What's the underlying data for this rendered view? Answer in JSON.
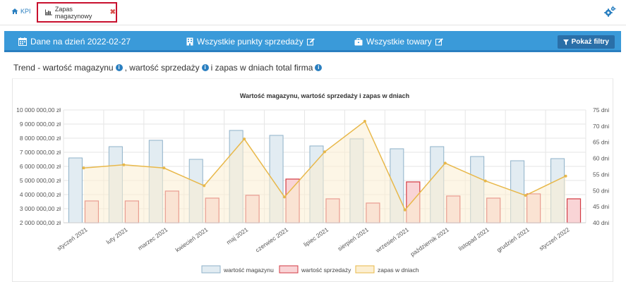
{
  "tabs": {
    "kpi_label": "KPI",
    "active_label": "Zapas magazynowy",
    "close_symbol": "✖"
  },
  "filters": {
    "date_label": "Dane na dzień 2022-02-27",
    "points_label": "Wszystkie punkty sprzedaży",
    "goods_label": "Wszystkie towary",
    "show_filters_label": "Pokaż filtry"
  },
  "panel": {
    "title_part1": "Trend - wartość magazynu",
    "title_part2": ", wartość sprzedaży",
    "title_part3": " i zapas w dniach total firma",
    "info_symbol": "i"
  },
  "icons": {
    "home": "home-icon",
    "chart": "bar-chart-icon",
    "settings": "gears-icon",
    "calendar": "calendar-icon",
    "building": "building-icon",
    "briefcase": "briefcase-icon",
    "edit": "edit-icon",
    "filter": "filter-icon",
    "info": "info-icon"
  },
  "colors": {
    "filter_bar": "#3a9ad9",
    "accent": "#2a7fc0",
    "active_tab_border": "#c8102e",
    "stock_fill": "#e2ecf2",
    "stock_stroke": "#8fb2c9",
    "sales_fill": "#f9d4d6",
    "sales_stroke": "#d33a43",
    "days_line": "#e8b84a",
    "days_area": "#fcefd2"
  },
  "chart_data": {
    "type": "bar",
    "title": "Wartość magazynu, wartość sprzedaży i zapas w dniach",
    "categories": [
      "styczeń 2021",
      "luty 2021",
      "marzec 2021",
      "kwiecień 2021",
      "maj 2021",
      "czerwiec 2021",
      "lipiec 2021",
      "sierpień 2021",
      "wrzesień 2021",
      "październik 2021",
      "listopad 2021",
      "grudzień 2021",
      "styczeń 2022"
    ],
    "series": [
      {
        "name": "wartość magazynu",
        "type": "bar",
        "axis": "left",
        "values": [
          6600000,
          7400000,
          7850000,
          6500000,
          8550000,
          8200000,
          7450000,
          7950000,
          7250000,
          7400000,
          6700000,
          6400000,
          6550000
        ]
      },
      {
        "name": "wartość sprzedaży",
        "type": "bar",
        "axis": "left",
        "values": [
          3550000,
          3550000,
          4250000,
          3750000,
          3950000,
          5100000,
          3700000,
          3400000,
          4900000,
          3900000,
          3750000,
          4050000,
          3700000
        ]
      },
      {
        "name": "zapas w dniach",
        "type": "area",
        "axis": "right",
        "values": [
          57,
          58,
          57,
          51.5,
          66,
          48,
          62,
          71.5,
          44,
          58.5,
          53,
          48.5,
          54.5
        ]
      }
    ],
    "yleft": {
      "min": 2000000,
      "max": 10000000,
      "step": 1000000,
      "tick_labels": [
        "2 000 000,00 zł",
        "3 000 000,00 zł",
        "4 000 000,00 zł",
        "5 000 000,00 zł",
        "6 000 000,00 zł",
        "7 000 000,00 zł",
        "8 000 000,00 zł",
        "9 000 000,00 zł",
        "10 000 000,00 zł"
      ]
    },
    "yright": {
      "min": 40,
      "max": 75,
      "step": 5,
      "tick_labels": [
        "40 dni",
        "45 dni",
        "50 dni",
        "55 dni",
        "60 dni",
        "65 dni",
        "70 dni",
        "75 dni"
      ]
    },
    "grid": true,
    "legend_position": "bottom"
  }
}
